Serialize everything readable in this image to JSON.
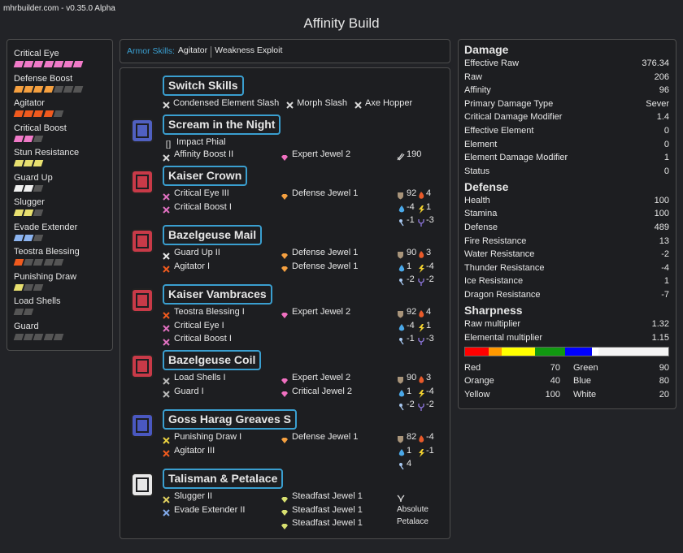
{
  "header": {
    "site": "mhrbuilder.com - v0.35.0 Alpha",
    "title": "Affinity Build"
  },
  "skills": [
    {
      "name": "Critical Eye",
      "level": 7,
      "max": 7,
      "color": "#f07ac8"
    },
    {
      "name": "Defense Boost",
      "level": 4,
      "max": 7,
      "color": "#f5a040"
    },
    {
      "name": "Agitator",
      "level": 4,
      "max": 5,
      "color": "#f05a1e"
    },
    {
      "name": "Critical Boost",
      "level": 2,
      "max": 3,
      "color": "#f07ac8"
    },
    {
      "name": "Stun Resistance",
      "level": 3,
      "max": 3,
      "color": "#e8e070"
    },
    {
      "name": "Guard Up",
      "level": 2,
      "max": 3,
      "color": "#f0f0f0"
    },
    {
      "name": "Slugger",
      "level": 2,
      "max": 3,
      "color": "#e8e070"
    },
    {
      "name": "Evade Extender",
      "level": 2,
      "max": 3,
      "color": "#8cb4f0"
    },
    {
      "name": "Teostra Blessing",
      "level": 1,
      "max": 5,
      "color": "#f05a1e"
    },
    {
      "name": "Punishing Draw",
      "level": 1,
      "max": 3,
      "color": "#e8e070"
    },
    {
      "name": "Load Shells",
      "level": 0,
      "max": 2,
      "color": "#b0b0b0"
    },
    {
      "name": "Guard",
      "level": 0,
      "max": 5,
      "color": "#b0b0b0"
    }
  ],
  "armor_skills": {
    "label": "Armor Skills:",
    "items": [
      "Agitator",
      "Weakness Exploit"
    ]
  },
  "equipment": [
    {
      "name": "Switch Skills",
      "skills": [
        {
          "name": "Condensed Element Slash",
          "color": "#d8d8d8"
        },
        {
          "name": "Morph Slash",
          "color": "#d8d8d8"
        },
        {
          "name": "Axe Hopper",
          "color": "#d8d8d8"
        }
      ]
    },
    {
      "name": "Scream in the Night",
      "phial": "Impact Phial",
      "skills": [
        {
          "name": "Affinity Boost II",
          "color": "#d8d8d8"
        }
      ],
      "decorations": [
        {
          "name": "Expert Jewel 2",
          "color": "#f070c0"
        }
      ],
      "attack": 190
    },
    {
      "name": "Kaiser Crown",
      "skills": [
        {
          "name": "Critical Eye III",
          "color": "#e070c0"
        },
        {
          "name": "Critical Boost I",
          "color": "#e070c0"
        }
      ],
      "decorations": [
        {
          "name": "Defense Jewel 1",
          "color": "#f5a040"
        }
      ],
      "stats": {
        "defense": 92,
        "fire": 4,
        "water": -4,
        "thunder": 1,
        "ice": -1,
        "dragon": -3
      }
    },
    {
      "name": "Bazelgeuse Mail",
      "skills": [
        {
          "name": "Guard Up II",
          "color": "#e8e8e8"
        },
        {
          "name": "Agitator I",
          "color": "#f05a1e"
        }
      ],
      "decorations": [
        {
          "name": "Defense Jewel 1",
          "color": "#f5a040"
        },
        {
          "name": "Defense Jewel 1",
          "color": "#f5a040"
        }
      ],
      "stats": {
        "defense": 90,
        "fire": 3,
        "water": 1,
        "thunder": -4,
        "ice": -2,
        "dragon": -2
      }
    },
    {
      "name": "Kaiser Vambraces",
      "skills": [
        {
          "name": "Teostra Blessing I",
          "color": "#f05a1e"
        },
        {
          "name": "Critical Eye I",
          "color": "#e070c0"
        },
        {
          "name": "Critical Boost I",
          "color": "#e070c0"
        }
      ],
      "decorations": [
        {
          "name": "Expert Jewel 2",
          "color": "#f070c0"
        }
      ],
      "stats": {
        "defense": 92,
        "fire": 4,
        "water": -4,
        "thunder": 1,
        "ice": -1,
        "dragon": -3
      }
    },
    {
      "name": "Bazelgeuse Coil",
      "skills": [
        {
          "name": "Load Shells I",
          "color": "#b8b8b8"
        },
        {
          "name": "Guard I",
          "color": "#b8b8b8"
        }
      ],
      "decorations": [
        {
          "name": "Expert Jewel 2",
          "color": "#f070c0"
        },
        {
          "name": "Critical Jewel 2",
          "color": "#f070c0"
        }
      ],
      "stats": {
        "defense": 90,
        "fire": 3,
        "water": 1,
        "thunder": -4,
        "ice": -2,
        "dragon": -2
      }
    },
    {
      "name": "Goss Harag Greaves S",
      "skills": [
        {
          "name": "Punishing Draw I",
          "color": "#e8d040"
        },
        {
          "name": "Agitator III",
          "color": "#f05a1e"
        }
      ],
      "decorations": [
        {
          "name": "Defense Jewel 1",
          "color": "#f5a040"
        }
      ],
      "stats": {
        "defense": 82,
        "fire": -4,
        "water": 1,
        "thunder": -1,
        "ice": 4
      }
    },
    {
      "name": "Talisman & Petalace",
      "skills": [
        {
          "name": "Slugger II",
          "color": "#e0d060"
        },
        {
          "name": "Evade Extender II",
          "color": "#80a8e8"
        }
      ],
      "decorations": [
        {
          "name": "Steadfast Jewel 1",
          "color": "#d8e070"
        },
        {
          "name": "Steadfast Jewel 1",
          "color": "#d8e070"
        },
        {
          "name": "Steadfast Jewel 1",
          "color": "#d8e070"
        }
      ],
      "petalace": "Absolute Petalace"
    }
  ],
  "stats": {
    "sections": [
      {
        "title": "Damage",
        "rows": [
          {
            "label": "Effective Raw",
            "value": 376.34
          },
          {
            "label": "Raw",
            "value": 206
          },
          {
            "label": "Affinity",
            "value": 96
          },
          {
            "label": "Primary Damage Type",
            "value": "Sever"
          },
          {
            "label": "Critical Damage Modifier",
            "value": 1.4
          },
          {
            "label": "Effective Element",
            "value": 0
          },
          {
            "label": "Element",
            "value": 0
          },
          {
            "label": "Element Damage Modifier",
            "value": 1
          },
          {
            "label": "Status",
            "value": 0
          }
        ]
      },
      {
        "title": "Defense",
        "rows": [
          {
            "label": "Health",
            "value": 100
          },
          {
            "label": "Stamina",
            "value": 100
          },
          {
            "label": "Defense",
            "value": 489
          },
          {
            "label": "Fire Resistance",
            "value": 13
          },
          {
            "label": "Water Resistance",
            "value": -2
          },
          {
            "label": "Thunder Resistance",
            "value": -4
          },
          {
            "label": "Ice Resistance",
            "value": 1
          },
          {
            "label": "Dragon Resistance",
            "value": -7
          }
        ]
      },
      {
        "title": "Sharpness",
        "rows": [
          {
            "label": "Raw multiplier",
            "value": 1.32
          },
          {
            "label": "Elemental multiplier",
            "value": 1.15
          }
        ]
      }
    ],
    "sharpness": [
      {
        "name": "Red",
        "value": 70,
        "color": "#ff0000"
      },
      {
        "name": "Orange",
        "value": 40,
        "color": "#ff9900"
      },
      {
        "name": "Yellow",
        "value": 100,
        "color": "#ffff00"
      },
      {
        "name": "Green",
        "value": 90,
        "color": "#119911"
      },
      {
        "name": "Blue",
        "value": 80,
        "color": "#0000ff"
      },
      {
        "name": "White",
        "value": 20,
        "color": "#ffffff"
      }
    ]
  }
}
